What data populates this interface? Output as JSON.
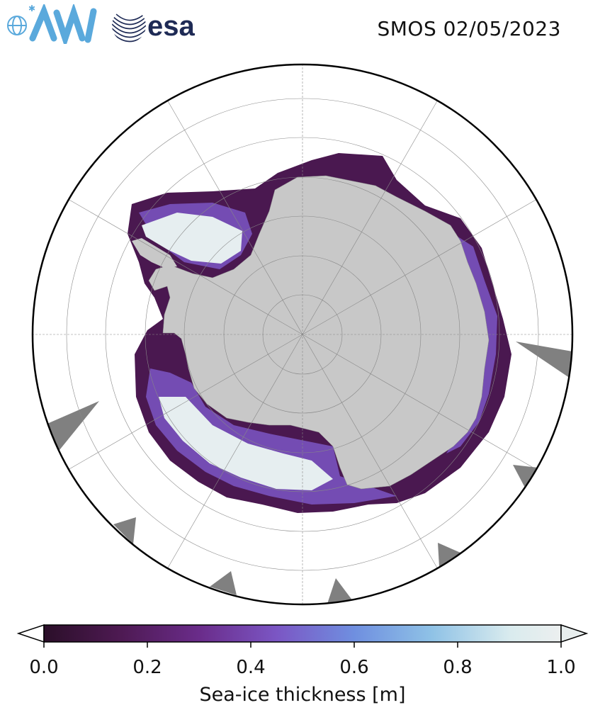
{
  "header": {
    "logo_left": "AWI",
    "logo_right": "esa",
    "date_label": "SMOS 02/05/2023"
  },
  "map": {
    "projection": "south-polar-stereographic",
    "land_color": "#c8c8c8",
    "ocean_color": "#ffffff",
    "no_data_color": "#808080",
    "graticule_color": "#888888"
  },
  "colorbar": {
    "label": "Sea-ice thickness [m]",
    "min": 0.0,
    "max": 1.0,
    "ticks": [
      "0.0",
      "0.2",
      "0.4",
      "0.6",
      "0.8",
      "1.0"
    ],
    "colormap": [
      "#2b0f29",
      "#4e1a53",
      "#6a2c8a",
      "#7b56c4",
      "#6f8fe0",
      "#8fc2e6",
      "#d9ebee",
      "#ecefef"
    ],
    "extend": "both"
  }
}
